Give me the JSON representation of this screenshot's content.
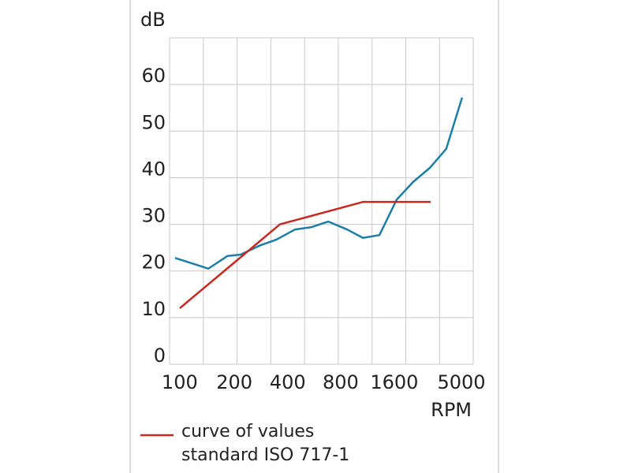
{
  "chart_data": {
    "type": "line",
    "ylabel": "dB",
    "xlabel": "RPM",
    "xlim": [
      0,
      9
    ],
    "ylim": [
      0,
      70
    ],
    "yticks": [
      0,
      10,
      20,
      30,
      40,
      50,
      60
    ],
    "xgrid": [
      0,
      1,
      2,
      3,
      4,
      5,
      6,
      7,
      8,
      9
    ],
    "xticks": [
      {
        "value": 0.3,
        "label": "100"
      },
      {
        "value": 1.92,
        "label": "200"
      },
      {
        "value": 3.5,
        "label": "400"
      },
      {
        "value": 5.07,
        "label": "800"
      },
      {
        "value": 6.66,
        "label": "1600"
      },
      {
        "value": 8.65,
        "label": "5000"
      }
    ],
    "grid": true,
    "series": [
      {
        "color": "#1a7fa8",
        "x": [
          0.16,
          1.15,
          1.71,
          2.1,
          2.69,
          3.16,
          3.72,
          4.21,
          4.7,
          5.26,
          5.73,
          6.22,
          6.73,
          7.22,
          7.71,
          8.2,
          8.67
        ],
        "values": [
          22.8,
          20.5,
          23.2,
          23.5,
          25.5,
          26.7,
          28.9,
          29.4,
          30.6,
          28.9,
          27.1,
          27.7,
          35.3,
          39.1,
          42.1,
          46.2,
          57.2
        ]
      },
      {
        "color": "#c8281e",
        "name": [
          "curve of values",
          "standard ISO 717-1"
        ],
        "x": [
          0.3,
          2.0,
          3.27,
          5.73,
          7.74
        ],
        "values": [
          12,
          22.3,
          30,
          34.8,
          34.8
        ]
      }
    ]
  }
}
